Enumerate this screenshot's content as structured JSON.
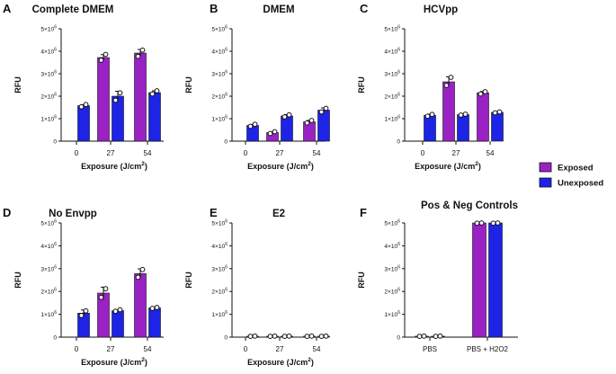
{
  "colors": {
    "exposed": "#9a22c4",
    "unexposed": "#1d24e6",
    "axis": "#111111"
  },
  "legend": [
    {
      "label": "Exposed",
      "color": "#9a22c4"
    },
    {
      "label": "Unexposed",
      "color": "#1d24e6"
    }
  ],
  "chart_data": [
    {
      "letter": "A",
      "title": "Complete DMEM",
      "type": "bar",
      "ylabel": "RFU",
      "xlabel": "Exposure (J/cm",
      "xlabel_sup": "2",
      "xlabel_end": ")",
      "ylim": [
        0,
        5000000
      ],
      "yticks": [
        {
          "value": 0,
          "base": "0",
          "exp": ""
        },
        {
          "value": 1000000,
          "base": "1×10",
          "exp": "6"
        },
        {
          "value": 2000000,
          "base": "2×10",
          "exp": "6"
        },
        {
          "value": 3000000,
          "base": "3×10",
          "exp": "6"
        },
        {
          "value": 4000000,
          "base": "4×10",
          "exp": "6"
        },
        {
          "value": 5000000,
          "base": "5×10",
          "exp": "6"
        }
      ],
      "categories": [
        "0",
        "27",
        "54"
      ],
      "bars": [
        {
          "group": 0,
          "series": "unexposed",
          "value": 1580000,
          "err": 40000,
          "points": [
            1530000,
            1630000
          ]
        },
        {
          "group": 1,
          "series": "exposed",
          "value": 3720000,
          "err": 130000,
          "points": [
            3600000,
            3860000
          ]
        },
        {
          "group": 1,
          "series": "unexposed",
          "value": 2000000,
          "err": 220000,
          "points": [
            1820000,
            2150000
          ]
        },
        {
          "group": 2,
          "series": "exposed",
          "value": 3920000,
          "err": 160000,
          "points": [
            3770000,
            4050000
          ]
        },
        {
          "group": 2,
          "series": "unexposed",
          "value": 2160000,
          "err": 80000,
          "points": [
            2100000,
            2240000
          ]
        }
      ]
    },
    {
      "letter": "B",
      "title": "DMEM",
      "type": "bar",
      "ylabel": "RFU",
      "xlabel": "Exposure (J/cm",
      "xlabel_sup": "2",
      "xlabel_end": ")",
      "ylim": [
        0,
        5000000
      ],
      "yticks": [
        {
          "value": 0,
          "base": "0",
          "exp": ""
        },
        {
          "value": 1000000,
          "base": "1×10",
          "exp": "6"
        },
        {
          "value": 2000000,
          "base": "2×10",
          "exp": "6"
        },
        {
          "value": 3000000,
          "base": "3×10",
          "exp": "6"
        },
        {
          "value": 4000000,
          "base": "4×10",
          "exp": "6"
        },
        {
          "value": 5000000,
          "base": "5×10",
          "exp": "6"
        }
      ],
      "categories": [
        "0",
        "27",
        "54"
      ],
      "bars": [
        {
          "group": 0,
          "series": "unexposed",
          "value": 700000,
          "err": 40000,
          "points": [
            660000,
            750000
          ]
        },
        {
          "group": 1,
          "series": "exposed",
          "value": 380000,
          "err": 40000,
          "points": [
            340000,
            420000
          ]
        },
        {
          "group": 1,
          "series": "unexposed",
          "value": 1120000,
          "err": 60000,
          "points": [
            1080000,
            1170000
          ]
        },
        {
          "group": 2,
          "series": "exposed",
          "value": 860000,
          "err": 60000,
          "points": [
            810000,
            920000
          ]
        },
        {
          "group": 2,
          "series": "unexposed",
          "value": 1380000,
          "err": 100000,
          "points": [
            1300000,
            1460000
          ]
        }
      ]
    },
    {
      "letter": "C",
      "title": "HCVpp",
      "type": "bar",
      "ylabel": "RFU",
      "xlabel": "Exposure (J/cm",
      "xlabel_sup": "2",
      "xlabel_end": ")",
      "ylim": [
        0,
        5000000
      ],
      "yticks": [
        {
          "value": 0,
          "base": "0",
          "exp": ""
        },
        {
          "value": 1000000,
          "base": "1×10",
          "exp": "6"
        },
        {
          "value": 2000000,
          "base": "2×10",
          "exp": "6"
        },
        {
          "value": 3000000,
          "base": "3×10",
          "exp": "6"
        },
        {
          "value": 4000000,
          "base": "4×10",
          "exp": "6"
        },
        {
          "value": 5000000,
          "base": "5×10",
          "exp": "6"
        }
      ],
      "categories": [
        "0",
        "27",
        "54"
      ],
      "bars": [
        {
          "group": 0,
          "series": "unexposed",
          "value": 1150000,
          "err": 50000,
          "points": [
            1110000,
            1190000
          ]
        },
        {
          "group": 1,
          "series": "exposed",
          "value": 2640000,
          "err": 220000,
          "points": [
            2480000,
            2840000
          ]
        },
        {
          "group": 1,
          "series": "unexposed",
          "value": 1180000,
          "err": 30000,
          "points": [
            1160000,
            1200000
          ]
        },
        {
          "group": 2,
          "series": "exposed",
          "value": 2150000,
          "err": 60000,
          "points": [
            2100000,
            2200000
          ]
        },
        {
          "group": 2,
          "series": "unexposed",
          "value": 1280000,
          "err": 30000,
          "points": [
            1260000,
            1300000
          ]
        }
      ]
    },
    {
      "letter": "D",
      "title": "No Envpp",
      "type": "bar",
      "ylabel": "RFU",
      "xlabel": "Exposure (J/cm",
      "xlabel_sup": "2",
      "xlabel_end": ")",
      "ylim": [
        0,
        5000000
      ],
      "yticks": [
        {
          "value": 0,
          "base": "0",
          "exp": ""
        },
        {
          "value": 1000000,
          "base": "1×10",
          "exp": "6"
        },
        {
          "value": 2000000,
          "base": "2×10",
          "exp": "6"
        },
        {
          "value": 3000000,
          "base": "3×10",
          "exp": "6"
        },
        {
          "value": 4000000,
          "base": "4×10",
          "exp": "6"
        },
        {
          "value": 5000000,
          "base": "5×10",
          "exp": "6"
        }
      ],
      "categories": [
        "0",
        "27",
        "54"
      ],
      "bars": [
        {
          "group": 0,
          "series": "unexposed",
          "value": 1050000,
          "err": 140000,
          "points": [
            950000,
            1150000
          ]
        },
        {
          "group": 1,
          "series": "exposed",
          "value": 1930000,
          "err": 260000,
          "points": [
            1740000,
            2120000
          ]
        },
        {
          "group": 1,
          "series": "unexposed",
          "value": 1160000,
          "err": 40000,
          "points": [
            1130000,
            1200000
          ]
        },
        {
          "group": 2,
          "series": "exposed",
          "value": 2780000,
          "err": 210000,
          "points": [
            2620000,
            2960000
          ]
        },
        {
          "group": 2,
          "series": "unexposed",
          "value": 1280000,
          "err": 30000,
          "points": [
            1260000,
            1300000
          ]
        }
      ]
    },
    {
      "letter": "E",
      "title": "E2",
      "type": "bar",
      "ylabel": "RFU",
      "xlabel": "Exposure (J/cm",
      "xlabel_sup": "2",
      "xlabel_end": ")",
      "ylim": [
        0,
        5000000
      ],
      "yticks": [
        {
          "value": 0,
          "base": "0",
          "exp": ""
        },
        {
          "value": 1000000,
          "base": "1×10",
          "exp": "6"
        },
        {
          "value": 2000000,
          "base": "2×10",
          "exp": "6"
        },
        {
          "value": 3000000,
          "base": "3×10",
          "exp": "6"
        },
        {
          "value": 4000000,
          "base": "4×10",
          "exp": "6"
        },
        {
          "value": 5000000,
          "base": "5×10",
          "exp": "6"
        }
      ],
      "categories": [
        "0",
        "27",
        "54"
      ],
      "bars": [
        {
          "group": 0,
          "series": "unexposed",
          "value": 40000,
          "err": 5000,
          "points": [
            35000,
            45000
          ]
        },
        {
          "group": 1,
          "series": "exposed",
          "value": 40000,
          "err": 5000,
          "points": [
            35000,
            45000
          ]
        },
        {
          "group": 1,
          "series": "unexposed",
          "value": 40000,
          "err": 5000,
          "points": [
            35000,
            45000
          ]
        },
        {
          "group": 2,
          "series": "exposed",
          "value": 40000,
          "err": 5000,
          "points": [
            35000,
            45000
          ]
        },
        {
          "group": 2,
          "series": "unexposed",
          "value": 40000,
          "err": 5000,
          "points": [
            35000,
            45000
          ]
        }
      ]
    },
    {
      "letter": "F",
      "title": "Pos & Neg Controls",
      "type": "bar",
      "ylabel": "RFU",
      "xlabel": "",
      "xlabel_sup": "",
      "xlabel_end": "",
      "ylim": [
        0,
        5000000
      ],
      "yticks": [
        {
          "value": 0,
          "base": "0",
          "exp": ""
        },
        {
          "value": 1000000,
          "base": "1×10",
          "exp": "6"
        },
        {
          "value": 2000000,
          "base": "2×10",
          "exp": "6"
        },
        {
          "value": 3000000,
          "base": "3×10",
          "exp": "6"
        },
        {
          "value": 4000000,
          "base": "4×10",
          "exp": "6"
        },
        {
          "value": 5000000,
          "base": "5×10",
          "exp": "6"
        }
      ],
      "categories": [
        "PBS",
        "PBS + H2O2"
      ],
      "bars": [
        {
          "group": 0,
          "series": "exposed",
          "value": 40000,
          "err": 5000,
          "points": [
            35000,
            45000
          ]
        },
        {
          "group": 0,
          "series": "unexposed",
          "value": 40000,
          "err": 5000,
          "points": [
            35000,
            45000
          ]
        },
        {
          "group": 1,
          "series": "exposed",
          "value": 5000000,
          "err": 0,
          "points": [
            4990000,
            5000000
          ]
        },
        {
          "group": 1,
          "series": "unexposed",
          "value": 5000000,
          "err": 0,
          "points": [
            4990000,
            5000000
          ]
        }
      ]
    }
  ]
}
